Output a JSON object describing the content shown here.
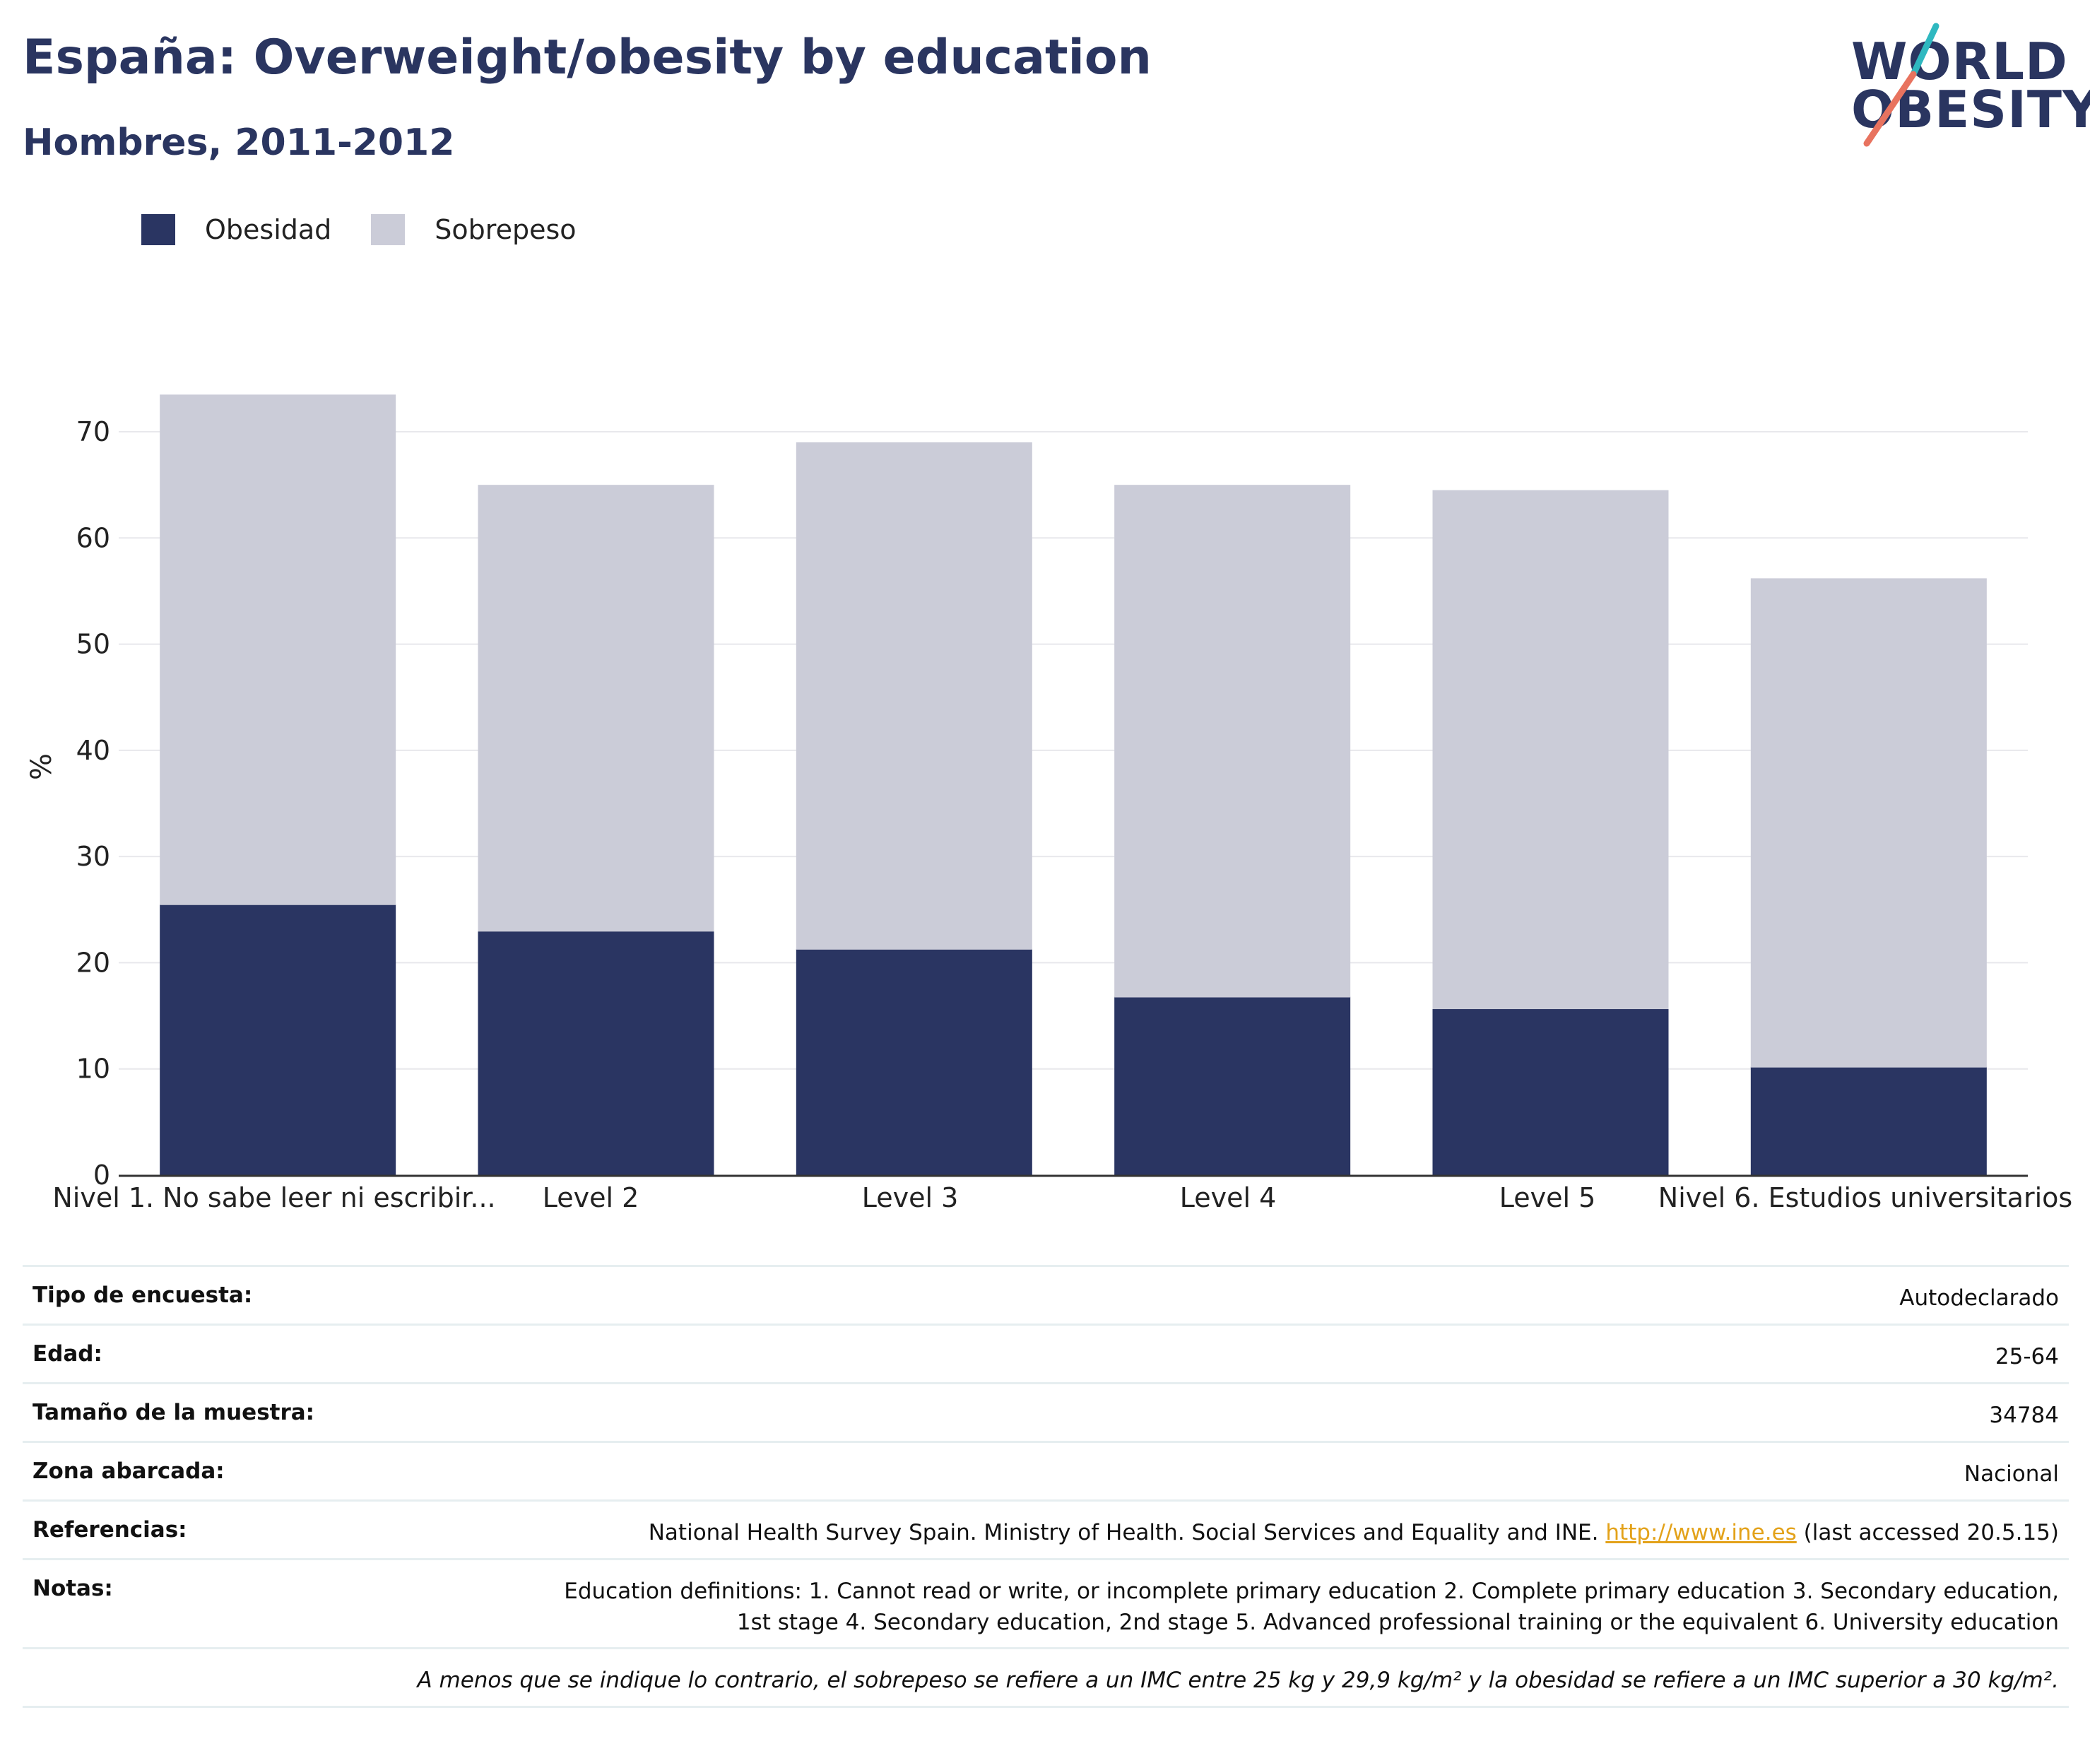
{
  "header": {
    "title": "España: Overweight/obesity by education",
    "subtitle": "Hombres, 2011-2012"
  },
  "logo": {
    "line1": "WORLD",
    "line2": "OBESITY",
    "accent_teal": "#2fb8c0",
    "accent_coral": "#e8735f"
  },
  "legend": [
    {
      "label": "Obesidad",
      "color": "#2a3562"
    },
    {
      "label": "Sobrepeso",
      "color": "#cbccd8"
    }
  ],
  "chart_data": {
    "type": "bar",
    "stacked": true,
    "categories": [
      "Nivel 1. No sabe leer ni escribir...",
      "Level 2",
      "Level 3",
      "Level 4",
      "Level 5",
      "Nivel 6. Estudios universitarios"
    ],
    "series": [
      {
        "name": "Obesidad",
        "color": "#2a3562",
        "values": [
          25.5,
          23.0,
          21.3,
          16.8,
          15.7,
          10.2
        ]
      },
      {
        "name": "Sobrepeso",
        "color": "#cbccd8",
        "values": [
          48.0,
          42.0,
          47.7,
          48.2,
          48.8,
          46.0
        ]
      }
    ],
    "ylabel": "%",
    "ylim": [
      0,
      75
    ],
    "yticks": [
      0,
      10,
      20,
      30,
      40,
      50,
      60,
      70
    ],
    "grid": true
  },
  "meta": {
    "rows": [
      {
        "label": "Tipo de encuesta:",
        "value": "Autodeclarado"
      },
      {
        "label": "Edad:",
        "value": "25-64"
      },
      {
        "label": "Tamaño de la muestra:",
        "value": "34784"
      },
      {
        "label": "Zona abarcada:",
        "value": "Nacional"
      }
    ],
    "references": {
      "label": "Referencias:",
      "text_before": "National Health Survey Spain. Ministry of Health. Social Services and Equality and INE.",
      "link": "http://www.ine.es",
      "text_after": "(last accessed 20.5.15)"
    },
    "notes": {
      "label": "Notas:",
      "line1": "Education definitions: 1. Cannot read or write, or incomplete primary education 2. Complete primary education 3. Secondary education,",
      "line2": "1st stage 4. Secondary education, 2nd stage 5. Advanced professional training or the equivalent 6. University education"
    },
    "footnote": "A menos que se indique lo contrario, el sobrepeso se refiere a un IMC entre 25 kg y 29,9 kg/m² y la obesidad se refiere a un IMC superior a 30 kg/m²."
  }
}
